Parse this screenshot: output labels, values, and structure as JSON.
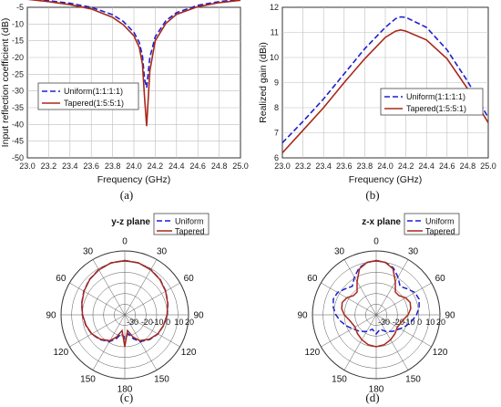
{
  "colors": {
    "uniform": "#1f1fd0",
    "tapered": "#a8281a",
    "grid": "#bdbdbd",
    "axis": "#333333"
  },
  "captions": [
    "(a)",
    "(b)",
    "(c)",
    "(d)"
  ],
  "chart_data": [
    {
      "type": "line",
      "caption": "(a)",
      "xlabel": "Frequency (GHz)",
      "ylabel": "Input reflection coefficient (dB)",
      "xlim": [
        23.0,
        25.0
      ],
      "ylim": [
        -50,
        -5
      ],
      "xticks": [
        "23.0",
        "23.2",
        "23.4",
        "23.6",
        "23.8",
        "24.0",
        "24.2",
        "24.4",
        "24.6",
        "24.8",
        "25.0"
      ],
      "yticks": [
        "-5",
        "-10",
        "-15",
        "-20",
        "-25",
        "-30",
        "-35",
        "-40",
        "-45",
        "-50"
      ],
      "grid": true,
      "legend_position": "center-left",
      "series": [
        {
          "name": "Uniform(1:1:1:1)",
          "style": "dashed",
          "x": [
            23.0,
            23.2,
            23.4,
            23.6,
            23.8,
            23.9,
            24.0,
            24.05,
            24.08,
            24.1,
            24.12,
            24.15,
            24.2,
            24.3,
            24.4,
            24.6,
            24.8,
            25.0
          ],
          "y": [
            -2.4,
            -3.0,
            -3.8,
            -5.0,
            -7.2,
            -9.2,
            -12.5,
            -15.5,
            -19.5,
            -26.5,
            -29.0,
            -20.0,
            -13.8,
            -9.0,
            -6.6,
            -4.4,
            -3.3,
            -2.6
          ]
        },
        {
          "name": "Tapered(1:5:5:1)",
          "style": "solid",
          "x": [
            23.0,
            23.2,
            23.4,
            23.6,
            23.8,
            23.9,
            24.0,
            24.05,
            24.08,
            24.1,
            24.12,
            24.15,
            24.2,
            24.3,
            24.4,
            24.6,
            24.8,
            25.0
          ],
          "y": [
            -2.6,
            -3.3,
            -4.2,
            -5.5,
            -8.0,
            -10.2,
            -13.5,
            -17.0,
            -22.0,
            -32.0,
            -40.5,
            -24.0,
            -15.0,
            -9.8,
            -7.1,
            -4.8,
            -3.6,
            -2.9
          ]
        }
      ]
    },
    {
      "type": "line",
      "caption": "(b)",
      "xlabel": "Frequency (GHz)",
      "ylabel": "Realized gain (dBi)",
      "xlim": [
        23.0,
        25.0
      ],
      "ylim": [
        6,
        12
      ],
      "xticks": [
        "23.0",
        "23.2",
        "23.4",
        "23.6",
        "23.8",
        "24.0",
        "24.2",
        "24.4",
        "24.6",
        "24.8",
        "25.0"
      ],
      "yticks": [
        "12",
        "11",
        "10",
        "9",
        "8",
        "7",
        "6"
      ],
      "grid": true,
      "legend_position": "center-right",
      "series": [
        {
          "name": "Uniform(1:1:1:1)",
          "style": "dashed",
          "x": [
            23.0,
            23.2,
            23.4,
            23.6,
            23.8,
            24.0,
            24.1,
            24.15,
            24.2,
            24.4,
            24.6,
            24.8,
            25.0
          ],
          "y": [
            6.6,
            7.45,
            8.35,
            9.35,
            10.35,
            11.2,
            11.55,
            11.62,
            11.6,
            11.2,
            10.3,
            9.05,
            7.6
          ]
        },
        {
          "name": "Tapered(1:5:5:1)",
          "style": "solid",
          "x": [
            23.0,
            23.2,
            23.4,
            23.6,
            23.8,
            24.0,
            24.1,
            24.15,
            24.2,
            24.4,
            24.6,
            24.8,
            25.0
          ],
          "y": [
            6.2,
            7.1,
            8.0,
            9.0,
            9.95,
            10.8,
            11.05,
            11.1,
            11.05,
            10.7,
            9.95,
            8.75,
            7.4
          ]
        }
      ]
    },
    {
      "type": "polar",
      "caption": "(c)",
      "title": "y-z plane",
      "angle_labels": [
        "0",
        "30",
        "60",
        "90",
        "120",
        "150",
        "180",
        "150",
        "120",
        "90",
        "60",
        "30"
      ],
      "radial_labels": [
        "-30",
        "-20",
        "-10",
        "0",
        "10",
        "20"
      ],
      "rlim": [
        -40,
        20
      ],
      "legend_position": "top-right",
      "series": [
        {
          "name": "Uniform",
          "style": "dashed",
          "theta": [
            0,
            15,
            30,
            45,
            60,
            75,
            90,
            105,
            120,
            135,
            150,
            160,
            170,
            180,
            190,
            200,
            210,
            225,
            240,
            255,
            270,
            285,
            300,
            315,
            330,
            345,
            360
          ],
          "r": [
            11,
            10.5,
            9,
            7,
            4.5,
            2,
            0,
            -2,
            -4,
            -7,
            -11,
            -16,
            -22,
            -18,
            -22,
            -16,
            -11,
            -7,
            -4,
            -2,
            0,
            2,
            4.5,
            7,
            9,
            10.5,
            11
          ]
        },
        {
          "name": "Tapered",
          "style": "solid",
          "theta": [
            0,
            15,
            30,
            45,
            60,
            75,
            90,
            105,
            120,
            135,
            150,
            160,
            170,
            180,
            190,
            200,
            210,
            225,
            240,
            255,
            270,
            285,
            300,
            315,
            330,
            345,
            360
          ],
          "r": [
            11,
            10.5,
            8.8,
            6.8,
            4.3,
            1.8,
            -0.2,
            -2.2,
            -4.2,
            -7.5,
            -12,
            -18,
            -25,
            -10,
            -25,
            -18,
            -12,
            -7.5,
            -4.2,
            -2.2,
            -0.2,
            1.8,
            4.3,
            6.8,
            8.8,
            10.5,
            11
          ]
        }
      ]
    },
    {
      "type": "polar",
      "caption": "(d)",
      "title": "z-x plane",
      "angle_labels": [
        "0",
        "30",
        "60",
        "90",
        "120",
        "150",
        "180",
        "150",
        "120",
        "90",
        "60",
        "30"
      ],
      "radial_labels": [
        "-30",
        "-20",
        "-10",
        "0",
        "10",
        "20"
      ],
      "rlim": [
        -40,
        20
      ],
      "legend_position": "top-right",
      "series": [
        {
          "name": "Uniform",
          "style": "dashed",
          "theta": [
            0,
            10,
            20,
            30,
            40,
            50,
            60,
            70,
            80,
            90,
            100,
            110,
            120,
            135,
            150,
            165,
            180,
            195,
            210,
            225,
            240,
            250,
            260,
            270,
            280,
            290,
            300,
            310,
            320,
            330,
            340,
            350,
            360
          ],
          "r": [
            11,
            10,
            7,
            1,
            -5,
            -2,
            2,
            3,
            1,
            -2,
            -6,
            -10,
            -14,
            -18,
            -22,
            -26,
            -22,
            -26,
            -22,
            -18,
            -14,
            -10,
            -6,
            -2,
            1,
            3,
            2,
            -2,
            -5,
            1,
            7,
            10,
            11
          ]
        },
        {
          "name": "Tapered",
          "style": "solid",
          "theta": [
            0,
            10,
            20,
            30,
            40,
            50,
            60,
            70,
            80,
            90,
            100,
            110,
            120,
            135,
            150,
            165,
            180,
            195,
            210,
            225,
            240,
            250,
            260,
            270,
            280,
            290,
            300,
            310,
            320,
            330,
            340,
            350,
            360
          ],
          "r": [
            11,
            10,
            6,
            -4,
            -12,
            -12,
            -8,
            -6,
            -7,
            -10,
            -14,
            -16,
            -17,
            -15,
            -13,
            -11,
            -10,
            -11,
            -13,
            -15,
            -17,
            -16,
            -14,
            -10,
            -7,
            -6,
            -8,
            -12,
            -12,
            -4,
            6,
            10,
            11
          ]
        }
      ]
    }
  ]
}
